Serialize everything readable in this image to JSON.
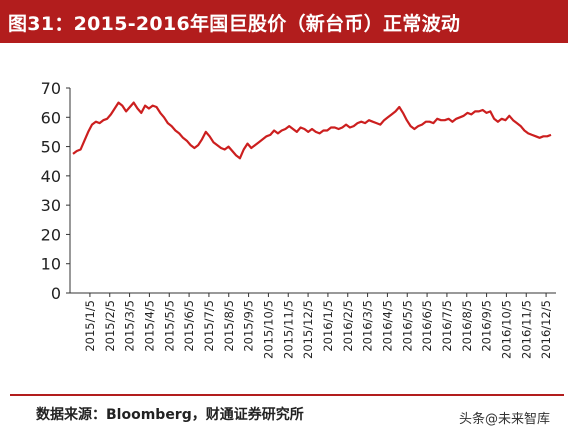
{
  "title": "图31：2015-2016年国巨股价（新台币）正常波动",
  "source": "数据来源：Bloomberg，财通证券研究所",
  "watermark": "头条@未来智库",
  "colors": {
    "accent": "#b21d1d",
    "line": "#cc1f1f",
    "axis": "#333333"
  },
  "chart_data": {
    "type": "line",
    "title": "",
    "xlabel": "",
    "ylabel": "",
    "ylim": [
      0,
      70
    ],
    "yticks": [
      0,
      10,
      20,
      30,
      40,
      50,
      60,
      70
    ],
    "grid": false,
    "xtick_labels": [
      "2015/1/5",
      "2015/2/5",
      "2015/3/5",
      "2015/4/5",
      "2015/5/5",
      "2015/6/5",
      "2015/7/5",
      "2015/8/5",
      "2015/9/5",
      "2015/10/5",
      "2015/11/5",
      "2015/12/5",
      "2016/1/5",
      "2016/2/5",
      "2016/3/5",
      "2016/4/5",
      "2016/5/5",
      "2016/6/5",
      "2016/7/5",
      "2016/8/5",
      "2016/9/5",
      "2016/10/5",
      "2016/11/5",
      "2016/12/5"
    ],
    "series": [
      {
        "values": [
          47.5,
          48.5,
          49,
          52,
          55,
          57.5,
          58.5,
          58,
          59,
          59.5,
          61,
          63,
          65,
          64,
          62,
          63.5,
          65,
          63,
          61.5,
          64,
          63,
          64,
          63.5,
          61.5,
          60,
          58,
          57,
          55.5,
          54.5,
          53,
          52,
          50.5,
          49.5,
          50.5,
          52.5,
          55,
          53.5,
          51.5,
          50.5,
          49.5,
          49,
          50,
          48.5,
          47,
          46,
          49,
          51,
          49.5,
          50.5,
          51.5,
          52.5,
          53.5,
          54,
          55.5,
          54.5,
          55.5,
          56,
          57,
          56,
          55,
          56.5,
          56,
          55,
          56,
          55,
          54.5,
          55.5,
          55.5,
          56.5,
          56.5,
          56,
          56.5,
          57.5,
          56.5,
          57,
          58,
          58.5,
          58,
          59,
          58.5,
          58,
          57.5,
          59,
          60,
          61,
          62,
          63.5,
          61.5,
          59,
          57,
          56,
          57,
          57.5,
          58.5,
          58.5,
          58,
          59.5,
          59,
          59,
          59.5,
          58.5,
          59.5,
          60,
          60.5,
          61.5,
          61,
          62,
          62,
          62.5,
          61.5,
          62,
          59.5,
          58.5,
          59.5,
          59,
          60.5,
          59,
          58,
          57,
          55.5,
          54.5,
          54,
          53.5,
          53,
          53.5,
          53.5,
          54
        ]
      }
    ]
  }
}
